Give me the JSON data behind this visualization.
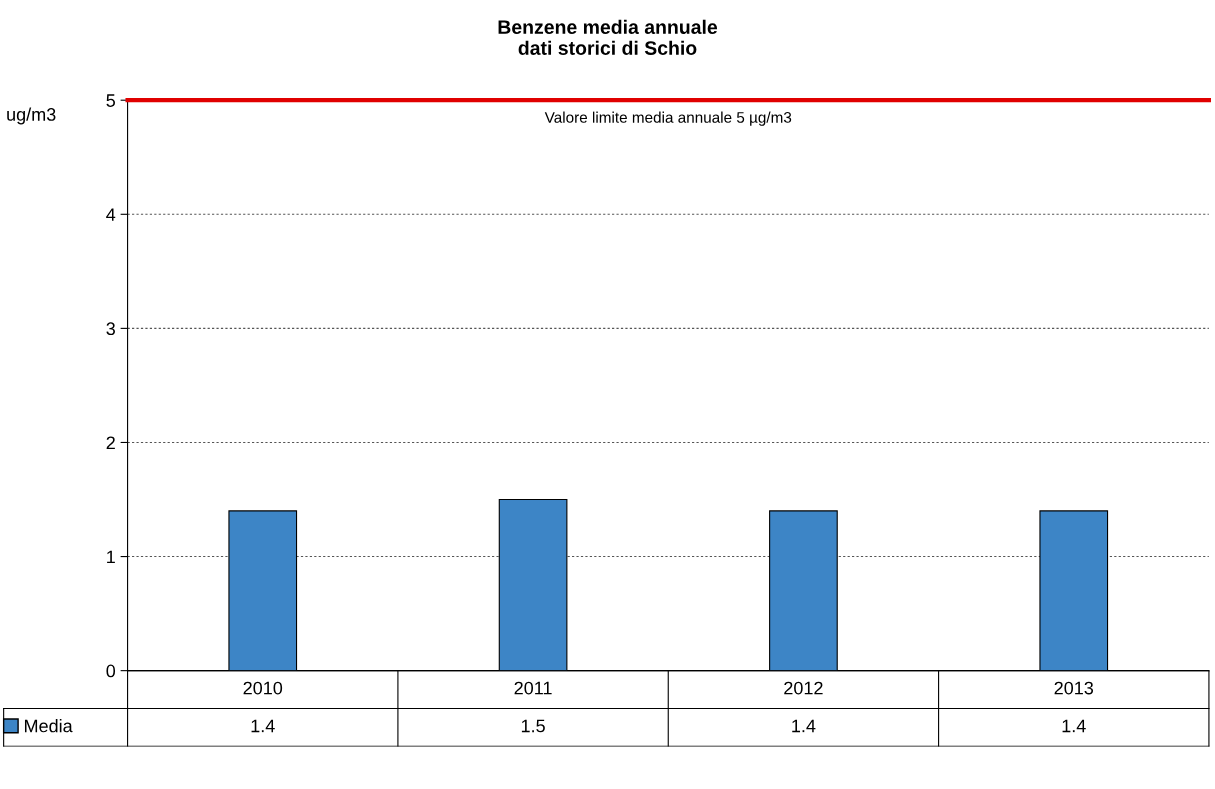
{
  "chart_data": {
    "type": "bar",
    "title": "Benzene media annuale\ndati storici di Schio",
    "ylabel": "ug/m3",
    "categories": [
      "2010",
      "2011",
      "2012",
      "2013"
    ],
    "series": [
      {
        "name": "Media",
        "color": "#3d85c6",
        "values": [
          1.4,
          1.5,
          1.4,
          1.4
        ]
      }
    ],
    "ylim": [
      0,
      5
    ],
    "yticks": [
      0,
      1,
      2,
      3,
      4,
      5
    ],
    "grid": "y",
    "data_labels": true,
    "legend": "bottom left",
    "ref_lines": [
      {
        "axis": "y",
        "value": 5,
        "label": "Valore limite media annuale 5 µg/m3",
        "color": "#e00000"
      }
    ]
  }
}
